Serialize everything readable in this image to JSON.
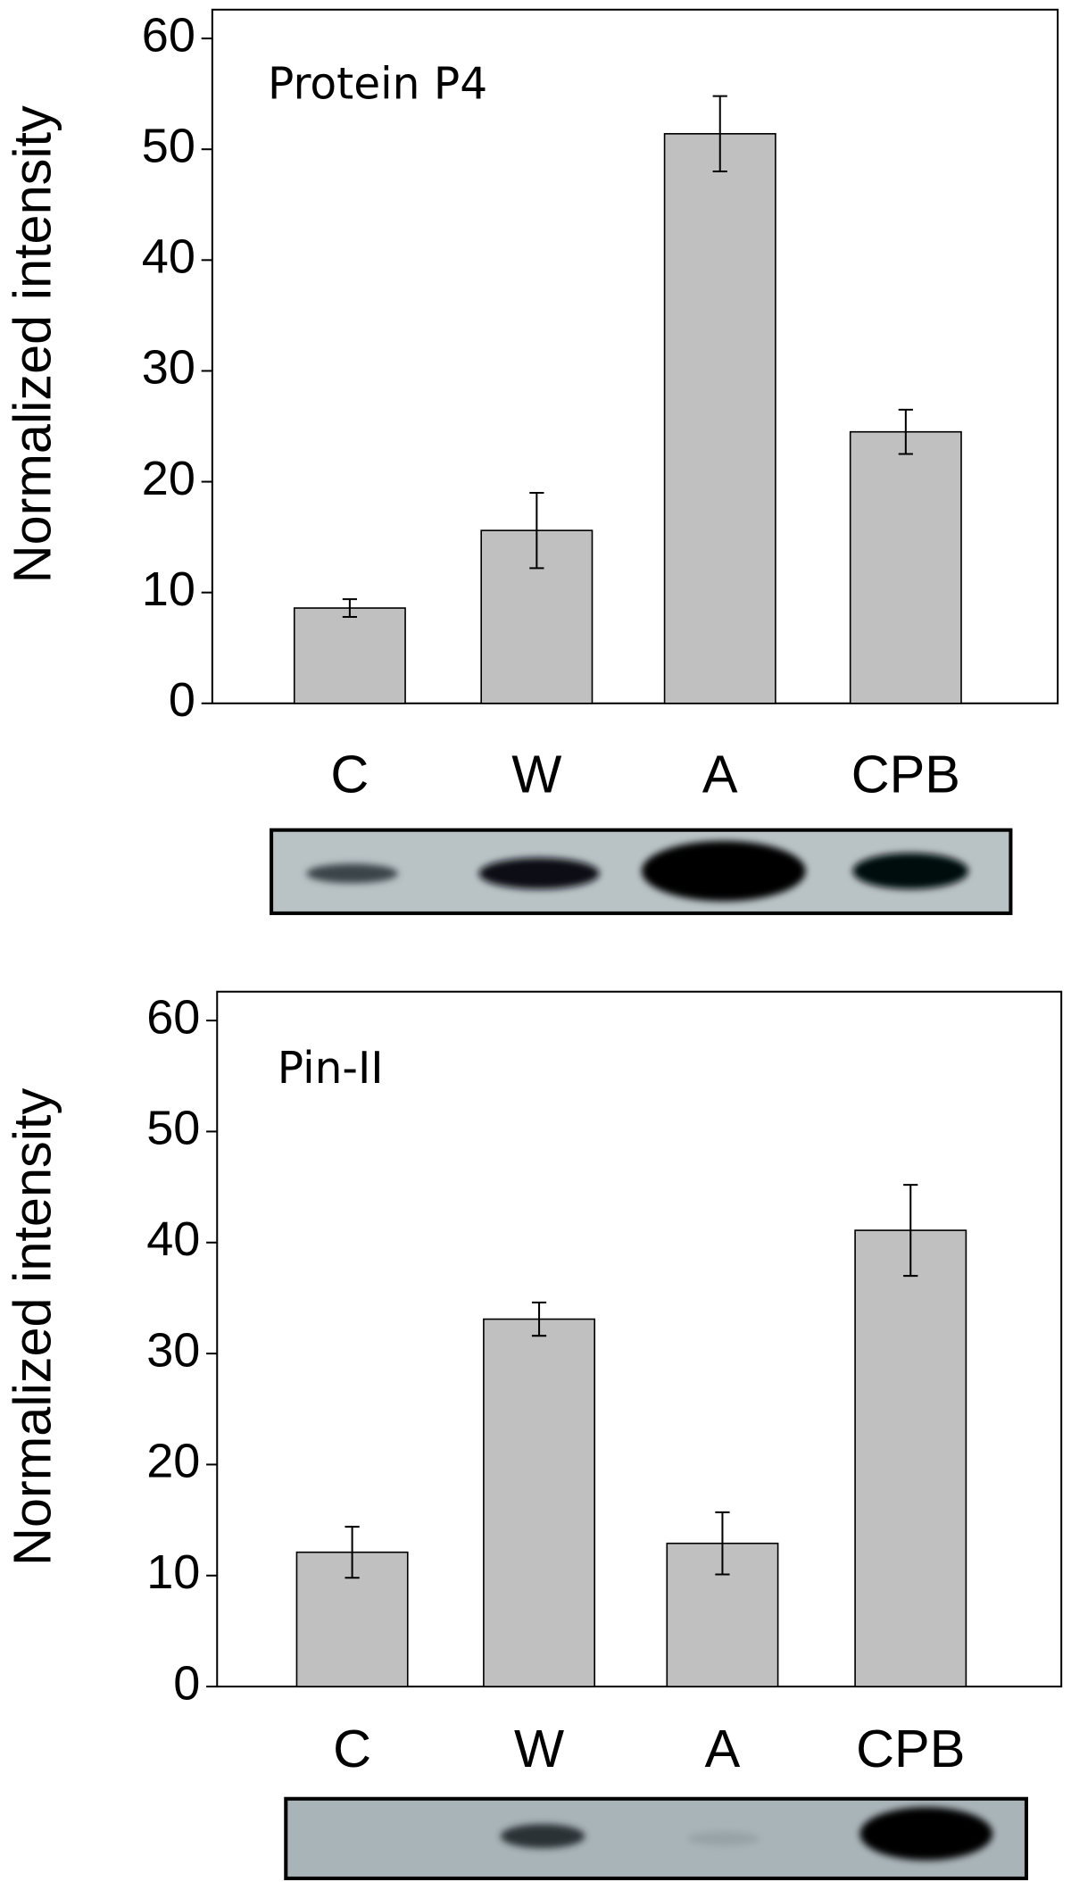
{
  "chart_data": [
    {
      "type": "bar",
      "title": "Protein P4",
      "y_label": "Normalized intensity",
      "categories": [
        "C",
        "W",
        "A",
        "CPB"
      ],
      "values": [
        8.6,
        15.6,
        51.4,
        24.5
      ],
      "errors": [
        0.8,
        3.4,
        3.4,
        2.0
      ],
      "color": "#c0c0c0",
      "ylim": [
        0,
        62.6
      ],
      "yticks": [
        0,
        10,
        20,
        30,
        40,
        50,
        60
      ]
    },
    {
      "type": "bar",
      "title": "Pin-II",
      "y_label": "Normalized intensity",
      "categories": [
        "C",
        "W",
        "A",
        "CPB"
      ],
      "values": [
        12.1,
        33.1,
        12.9,
        41.1
      ],
      "errors": [
        2.3,
        1.5,
        2.8,
        4.1
      ],
      "color": "#c0c0c0",
      "ylim": [
        0,
        62.6
      ],
      "yticks": [
        0,
        10,
        20,
        30,
        40,
        50,
        60
      ]
    }
  ]
}
